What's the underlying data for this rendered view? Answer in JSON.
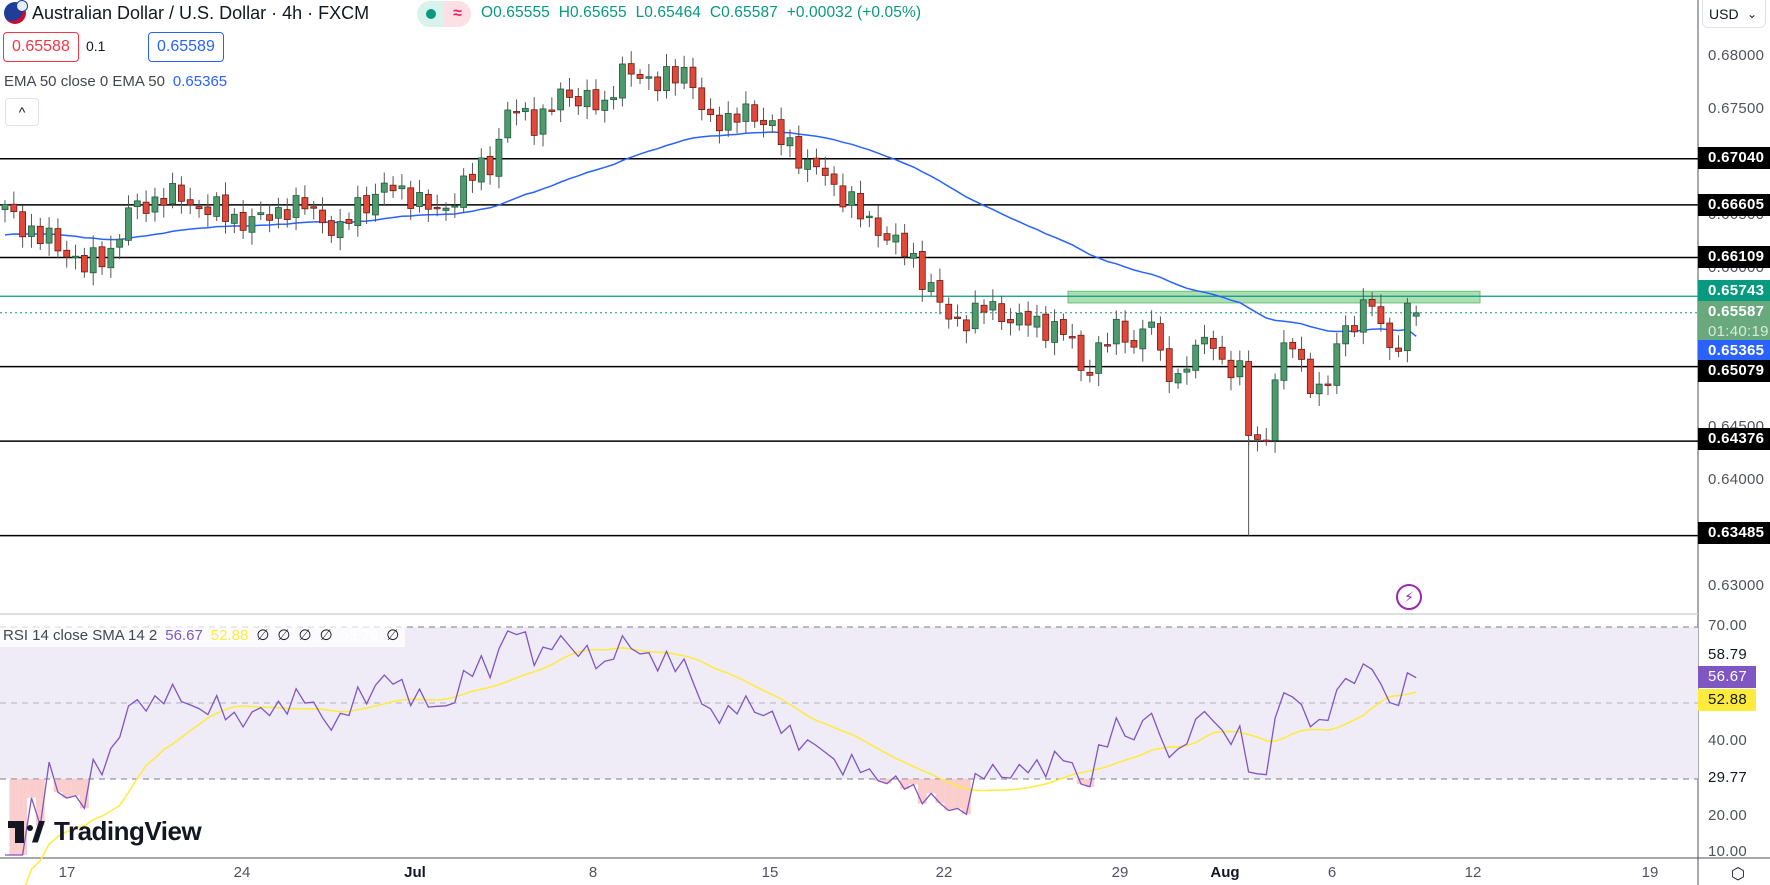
{
  "header": {
    "symbol_title": "Australian Dollar / U.S. Dollar · 4h · FXCM",
    "market_status_icon": "market-open-dot-icon",
    "data_delay_icon": "approx-icon",
    "ohlc": {
      "open": "O0.65555",
      "high": "H0.65655",
      "low": "L0.65464",
      "close": "C0.65587",
      "change": "+0.00032 (+0.05%)"
    },
    "sell_price": "0.65588",
    "spread": "0.1",
    "buy_price": "0.65589",
    "collapse_icon": "^",
    "currency": "USD"
  },
  "indicators": {
    "ema": {
      "label": "EMA 50 close 0 EMA 50",
      "value": "0.65365",
      "color": "#2962ff"
    },
    "rsi": {
      "label": "RSI 14 close SMA 14 2",
      "rsi_value": "56.67",
      "sma_value": "52.88",
      "nulls": [
        "∅",
        "∅",
        "∅",
        "∅"
      ],
      "hidden_value": "58.79",
      "last_null": "∅"
    }
  },
  "price_axis": {
    "ticks": [
      "0.68000",
      "0.67500",
      "0.67000",
      "0.66500",
      "0.66000",
      "0.64500",
      "0.64000",
      "0.63000"
    ],
    "tags": {
      "r1": "0.67040",
      "r2": "0.66605",
      "r3": "0.66109",
      "zone": "0.65743",
      "current": "0.65587",
      "countdown": "01:40:19",
      "ema": "0.65365",
      "s1": "0.65079",
      "s2": "0.64376",
      "s3": "0.63485"
    }
  },
  "rsi_axis": {
    "ticks": [
      "70.00",
      "40.00",
      "20.00",
      "10.00"
    ],
    "tags": {
      "upper_band": "58.79",
      "rsi": "56.67",
      "sma": "52.88",
      "lower_band": "29.77"
    }
  },
  "time_axis": [
    "17",
    "24",
    "Jul",
    "8",
    "15",
    "22",
    "29",
    "Aug",
    "6",
    "12",
    "19"
  ],
  "branding": {
    "logo_text": "TradingView"
  },
  "icons": {
    "flash": "⚡",
    "settings": "⬡",
    "chevron": "⌄"
  },
  "colors": {
    "up": "#4e9a6e",
    "down": "#e0483a",
    "ema": "#2962ff",
    "rsi": "#7e57c2",
    "rsi_sma": "#ffeb3b",
    "zone": "#7fcf8a",
    "teal": "#089981"
  },
  "chart_data": [
    {
      "type": "candlestick",
      "title": "Australian Dollar / U.S. Dollar · 4h · FXCM",
      "ylabel": "USD",
      "ylim": [
        0.6271,
        0.6818
      ],
      "x_ticks": [
        "17",
        "24",
        "Jul",
        "8",
        "15",
        "22",
        "29",
        "Aug",
        "6",
        "12",
        "19"
      ],
      "last_ohlc": {
        "open": 0.65555,
        "high": 0.65655,
        "low": 0.65464,
        "close": 0.65587
      },
      "horizontal_levels": [
        0.6704,
        0.66605,
        0.66109,
        0.65079,
        0.64376,
        0.63485
      ],
      "resistance_zone": {
        "from": 0.6568,
        "to": 0.6579,
        "line": 0.65743
      },
      "ema50_last": 0.65365,
      "close_path": [
        [
          0,
          0.6655
        ],
        [
          4,
          0.663
        ],
        [
          8,
          0.6612
        ],
        [
          9,
          0.66
        ],
        [
          12,
          0.6618
        ],
        [
          14,
          0.6652
        ],
        [
          18,
          0.667
        ],
        [
          22,
          0.666
        ],
        [
          26,
          0.6648
        ],
        [
          29,
          0.6645
        ],
        [
          32,
          0.666
        ],
        [
          35,
          0.6655
        ],
        [
          38,
          0.6633
        ],
        [
          40,
          0.666
        ],
        [
          43,
          0.6675
        ],
        [
          46,
          0.6672
        ],
        [
          49,
          0.665
        ],
        [
          52,
          0.668
        ],
        [
          55,
          0.67
        ],
        [
          57,
          0.6748
        ],
        [
          60,
          0.674
        ],
        [
          63,
          0.676
        ],
        [
          66,
          0.6765
        ],
        [
          68,
          0.6745
        ],
        [
          70,
          0.6795
        ],
        [
          73,
          0.677
        ],
        [
          75,
          0.6788
        ],
        [
          77,
          0.678
        ],
        [
          80,
          0.6745
        ],
        [
          82,
          0.6732
        ],
        [
          84,
          0.6755
        ],
        [
          87,
          0.6728
        ],
        [
          89,
          0.672
        ],
        [
          91,
          0.6695
        ],
        [
          93,
          0.669
        ],
        [
          95,
          0.667
        ],
        [
          97,
          0.665
        ],
        [
          99,
          0.664
        ],
        [
          101,
          0.6622
        ],
        [
          103,
          0.6608
        ],
        [
          105,
          0.6582
        ],
        [
          107,
          0.655
        ],
        [
          109,
          0.6555
        ],
        [
          111,
          0.6562
        ],
        [
          113,
          0.6558
        ],
        [
          115,
          0.6552
        ],
        [
          117,
          0.6545
        ],
        [
          119,
          0.6548
        ],
        [
          121,
          0.653
        ],
        [
          122,
          0.65
        ],
        [
          124,
          0.6525
        ],
        [
          126,
          0.654
        ],
        [
          128,
          0.6532
        ],
        [
          130,
          0.6552
        ],
        [
          131,
          0.651
        ],
        [
          133,
          0.65
        ],
        [
          135,
          0.6522
        ],
        [
          137,
          0.6535
        ],
        [
          138,
          0.6512
        ],
        [
          140,
          0.65
        ],
        [
          141,
          0.6445
        ],
        [
          143,
          0.644
        ],
        [
          144,
          0.65
        ],
        [
          146,
          0.6532
        ],
        [
          148,
          0.6492
        ],
        [
          150,
          0.6482
        ],
        [
          151,
          0.6535
        ],
        [
          153,
          0.6553
        ],
        [
          155,
          0.6565
        ],
        [
          157,
          0.653
        ],
        [
          158,
          0.653
        ],
        [
          159,
          0.6555
        ],
        [
          160,
          0.6559
        ]
      ]
    },
    {
      "type": "line",
      "title": "RSI 14 close SMA 14 2",
      "ylim": [
        8,
        72
      ],
      "bands": {
        "upper": 70,
        "middle": 50,
        "lower": 30
      },
      "series": [
        {
          "name": "RSI",
          "last": 56.67
        },
        {
          "name": "RSI-based MA (SMA 14)",
          "last": 52.88
        }
      ],
      "tags": [
        58.79,
        56.67,
        52.88,
        29.77
      ],
      "oversold_regions": [
        "~Jul 23-26 (min ~13)"
      ]
    }
  ]
}
